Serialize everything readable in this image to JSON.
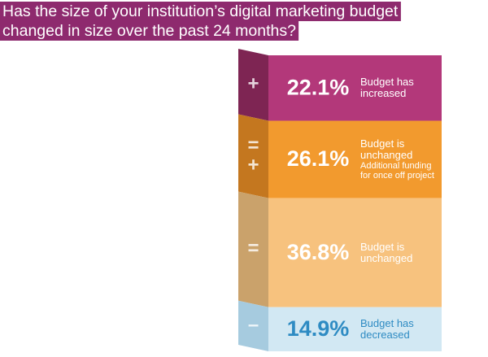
{
  "chart_data": {
    "type": "bar",
    "title": [
      "Has the size of your institution’s digital marketing budget",
      "changed in size over the past 24 months?"
    ],
    "title_color": "#8e2a6e",
    "categories": [
      "Budget has increased",
      "Budget is unchanged",
      "Budget is unchanged",
      "Budget has decreased"
    ],
    "details": [
      null,
      "Additional funding for once off project",
      null,
      null
    ],
    "symbols": [
      [
        "+"
      ],
      [
        "=",
        "+"
      ],
      [
        "="
      ],
      [
        "–"
      ]
    ],
    "values": [
      22.1,
      26.1,
      36.8,
      14.9
    ],
    "value_labels": [
      "22.1%",
      "26.1%",
      "36.8%",
      "14.9%"
    ],
    "colors": [
      "#b3387a",
      "#f29a2e",
      "#f7c27e",
      "#d2e8f3"
    ],
    "side_colors": [
      "#7e2553",
      "#c4771f",
      "#caa26b",
      "#a6cbdf"
    ],
    "text_colors": [
      "#ffffff",
      "#ffffff",
      "#ffffff",
      "#2e8bc3"
    ]
  }
}
